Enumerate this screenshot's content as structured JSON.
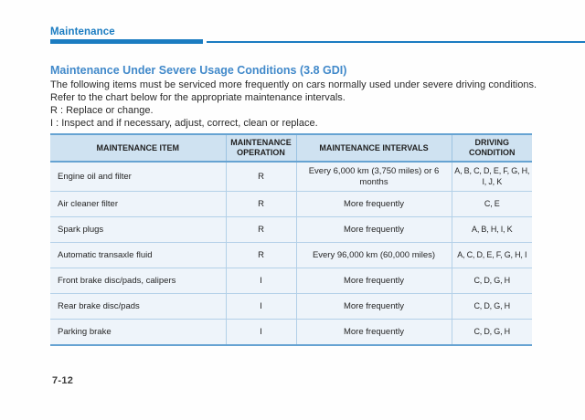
{
  "header": {
    "section_label": "Maintenance"
  },
  "content": {
    "title": "Maintenance Under Severe Usage Conditions (3.8 GDI)",
    "intro": "The following items must be serviced more frequently on cars normally used under severe driving conditions. Refer to the chart below for the appropriate maintenance intervals.",
    "legend": [
      "R : Replace or change.",
      "I : Inspect and if necessary, adjust, correct, clean or replace."
    ]
  },
  "table": {
    "columns": [
      "MAINTENANCE ITEM",
      "MAINTENANCE OPERATION",
      "MAINTENANCE INTERVALS",
      "DRIVING CONDITION"
    ],
    "rows": [
      {
        "item": "Engine oil and filter",
        "operation": "R",
        "interval": "Every 6,000 km (3,750 miles) or 6 months",
        "condition": "A, B, C, D, E, F, G, H, I, J, K"
      },
      {
        "item": "Air cleaner filter",
        "operation": "R",
        "interval": "More frequently",
        "condition": "C, E"
      },
      {
        "item": "Spark plugs",
        "operation": "R",
        "interval": "More frequently",
        "condition": "A, B, H, I, K"
      },
      {
        "item": "Automatic transaxle fluid",
        "operation": "R",
        "interval": "Every 96,000 km (60,000 miles)",
        "condition": "A, C, D, E, F, G, H, I"
      },
      {
        "item": "Front brake disc/pads, calipers",
        "operation": "I",
        "interval": "More frequently",
        "condition": "C, D, G, H"
      },
      {
        "item": "Rear brake disc/pads",
        "operation": "I",
        "interval": "More frequently",
        "condition": "C, D, G, H"
      },
      {
        "item": "Parking brake",
        "operation": "I",
        "interval": "More frequently",
        "condition": "C, D, G, H"
      }
    ]
  },
  "footer": {
    "page_number": "7-12"
  },
  "colors": {
    "accent_blue": "#1b7cc1",
    "title_blue": "#4189ca",
    "table_header_bg": "#cfe2f1",
    "table_row_bg": "#eef4fa",
    "table_border_strong": "#66a3d2",
    "table_border_light": "#b3d0e8",
    "body_text": "#2a2a2a"
  }
}
